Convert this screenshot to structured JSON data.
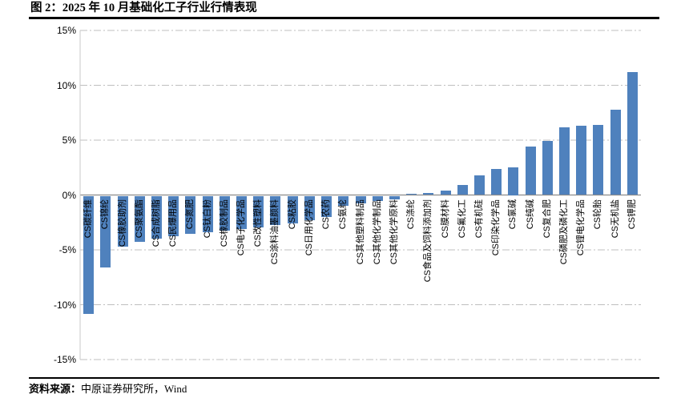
{
  "figure": {
    "title": "图 2：2025 年 10 月基础化工子行业行情表现",
    "source_label": "资料来源：",
    "source_text": "中原证券研究所，Wind"
  },
  "chart_data": {
    "type": "bar",
    "title": "2025 年 10 月基础化工子行业行情表现",
    "unit": "%",
    "xlabel": "",
    "ylabel": "",
    "ylim": [
      -15,
      15
    ],
    "ytick_step": 5,
    "grid": "horizontal dash-dot lines every 5%, solid gray zero line, left axis line, no legend",
    "legend": null,
    "bar_color": "#4F81BD",
    "grid_color": "#BFBFBF",
    "zero_line_color": "#8C8C8C",
    "axis_line_color": "#C9C9C9",
    "text_color": "#000000",
    "yticks": [
      {
        "value": 15,
        "label": "15%"
      },
      {
        "value": 10,
        "label": "10%"
      },
      {
        "value": 5,
        "label": "5%"
      },
      {
        "value": 0,
        "label": "0%"
      },
      {
        "value": -5,
        "label": "-5%"
      },
      {
        "value": -10,
        "label": "-10%"
      },
      {
        "value": -15,
        "label": "-15%"
      }
    ],
    "categories": [
      "CS碳纤维",
      "CS锦纶",
      "CS橡胶助剂",
      "CS聚氨酯",
      "CS合成树脂",
      "CS民爆用品",
      "CS氮肥",
      "CS钛白粉",
      "CS橡胶制品",
      "CS电子化学品",
      "CS改性塑料",
      "CS涂料油墨颜料",
      "CS粘胶",
      "CS日用化学品",
      "CS农药",
      "CS氨纶",
      "CS其他塑料制品",
      "CS其他化学制品",
      "CS其他化学原料",
      "CS涤纶",
      "CS食品及饲料添加剂",
      "CS膜材料",
      "CS氟化工",
      "CS有机硅",
      "CS印染化学品",
      "CS氯碱",
      "CS纯碱",
      "CS复合肥",
      "CS磷肥及磷化工",
      "CS锂电化学品",
      "CS轮胎",
      "CS无机盐",
      "CS钾肥"
    ],
    "values": [
      -10.8,
      -6.5,
      -4.6,
      -4.2,
      -3.9,
      -3.7,
      -3.5,
      -3.3,
      -3.2,
      -3.0,
      -2.9,
      -2.7,
      -2.5,
      -2.2,
      -1.9,
      -0.9,
      -0.7,
      -0.5,
      -0.3,
      0.1,
      0.2,
      0.4,
      0.9,
      1.8,
      2.4,
      2.5,
      4.4,
      4.9,
      6.2,
      6.3,
      6.4,
      7.8,
      11.2
    ]
  }
}
